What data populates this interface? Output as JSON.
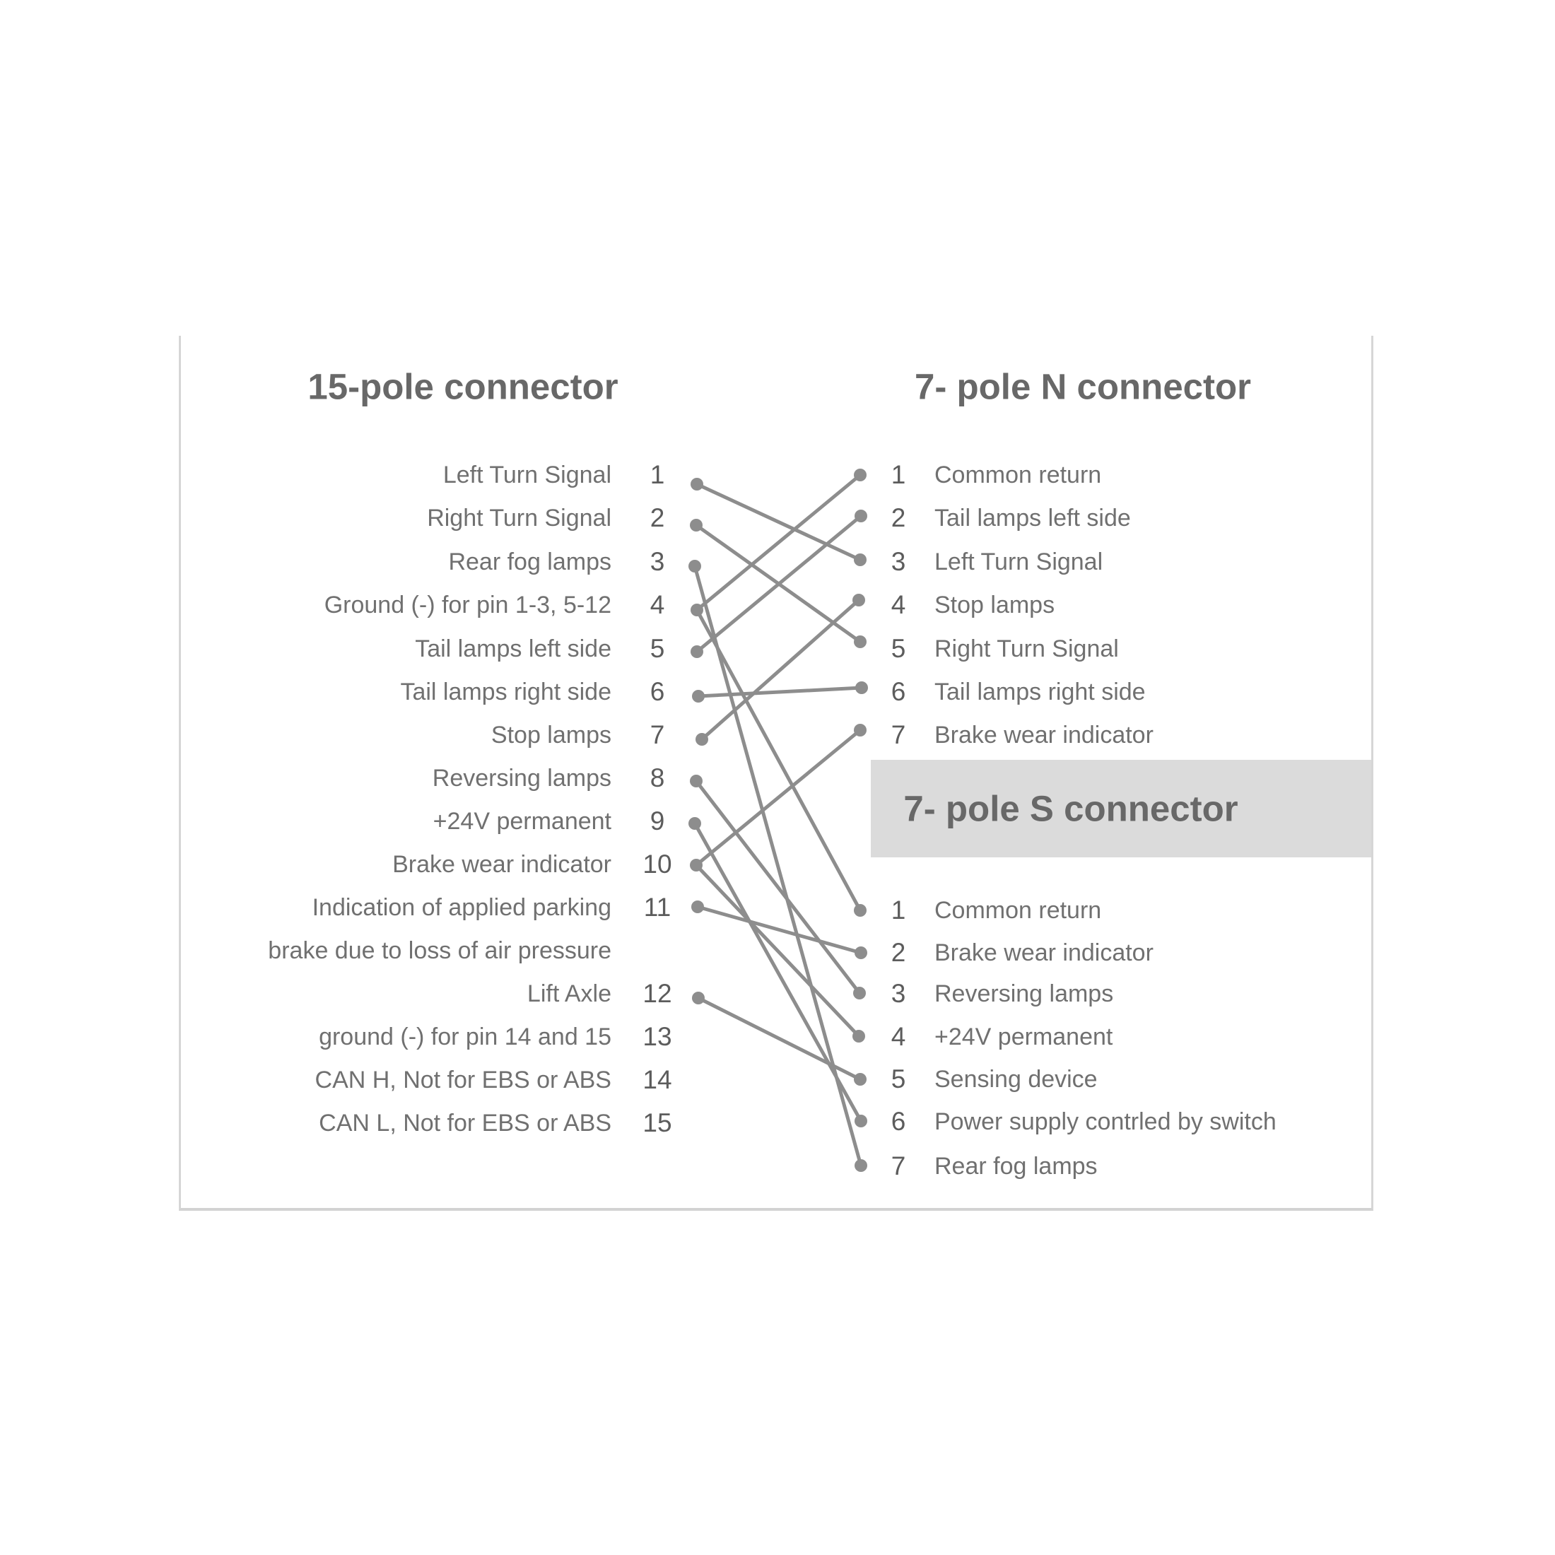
{
  "header": {
    "left_title": "15-pole connector",
    "right_title": "7- pole N connector"
  },
  "s_header": {
    "title": "7- pole S connector"
  },
  "pole15": {
    "pins": [
      {
        "n": "1",
        "label": "Left Turn Signal"
      },
      {
        "n": "2",
        "label": "Right Turn Signal"
      },
      {
        "n": "3",
        "label": "Rear fog lamps"
      },
      {
        "n": "4",
        "label": "Ground (-) for pin 1-3, 5-12"
      },
      {
        "n": "5",
        "label": "Tail lamps left side"
      },
      {
        "n": "6",
        "label": "Tail lamps right side"
      },
      {
        "n": "7",
        "label": "Stop lamps"
      },
      {
        "n": "8",
        "label": "Reversing lamps"
      },
      {
        "n": "9",
        "label": "+24V permanent"
      },
      {
        "n": "10",
        "label": "Brake wear indicator"
      },
      {
        "n": "11",
        "label": "Indication of applied parking",
        "label2": "brake due to loss of air pressure"
      },
      {
        "n": "12",
        "label": "Lift Axle"
      },
      {
        "n": "13",
        "label": "ground (-) for pin 14 and 15"
      },
      {
        "n": "14",
        "label": "CAN H, Not for EBS or ABS"
      },
      {
        "n": "15",
        "label": "CAN L, Not for EBS or ABS"
      }
    ]
  },
  "poleN": {
    "pins": [
      {
        "n": "1",
        "label": "Common return"
      },
      {
        "n": "2",
        "label": "Tail lamps left side"
      },
      {
        "n": "3",
        "label": "Left Turn Signal"
      },
      {
        "n": "4",
        "label": "Stop lamps"
      },
      {
        "n": "5",
        "label": "Right Turn Signal"
      },
      {
        "n": "6",
        "label": "Tail lamps right side"
      },
      {
        "n": "7",
        "label": "Brake wear indicator"
      }
    ]
  },
  "poleS": {
    "pins": [
      {
        "n": "1",
        "label": "Common return"
      },
      {
        "n": "2",
        "label": "Brake wear indicator"
      },
      {
        "n": "3",
        "label": "Reversing lamps"
      },
      {
        "n": "4",
        "label": "+24V permanent"
      },
      {
        "n": "5",
        "label": "Sensing device"
      },
      {
        "n": "6",
        "label": "Power supply contrled by switch"
      },
      {
        "n": "7",
        "label": "Rear fog lamps"
      }
    ]
  },
  "connections": [
    {
      "from": "1",
      "to": "N3"
    },
    {
      "from": "2",
      "to": "N5"
    },
    {
      "from": "3",
      "to": "S7"
    },
    {
      "from": "4",
      "to": "N1"
    },
    {
      "from": "4",
      "to": "S1"
    },
    {
      "from": "5",
      "to": "N2"
    },
    {
      "from": "6",
      "to": "N6"
    },
    {
      "from": "7",
      "to": "N4"
    },
    {
      "from": "8",
      "to": "S3"
    },
    {
      "from": "9",
      "to": "S6"
    },
    {
      "from": "10",
      "to": "N7"
    },
    {
      "from": "10",
      "to": "S4"
    },
    {
      "from": "11",
      "to": "S2"
    },
    {
      "from": "12",
      "to": "S5"
    }
  ],
  "colors": {
    "band": "#dbdbdb",
    "title_text": "#686868",
    "label_text": "#707070",
    "number_text": "#5c5c5c",
    "wire": "#8d8d8d",
    "border": "#d4d4d4"
  }
}
